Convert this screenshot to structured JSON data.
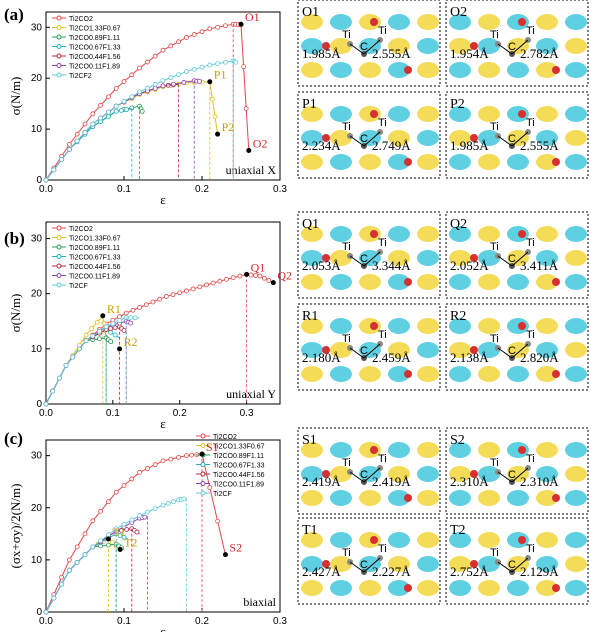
{
  "panels": [
    {
      "tag": "(a)",
      "mode_label": "uniaxial X",
      "xlabel": "ε",
      "ylabel": "σ(N/m)",
      "legend": [
        "Ti2CO2",
        "Ti2CO1.33F0.67",
        "Ti2CO0.89F1.11",
        "Ti2CO0.67F1.33",
        "Ti2CO0.44F1.56",
        "Ti2CO0.11F1.89",
        "Ti2CF2"
      ],
      "points": [
        {
          "label": "O1",
          "x": 0.25,
          "y": 30.6
        },
        {
          "label": "O2",
          "x": 0.26,
          "y": 5.8
        },
        {
          "label": "P1",
          "x": 0.21,
          "y": 19.3
        },
        {
          "label": "P2",
          "x": 0.22,
          "y": 9.0
        }
      ],
      "bonds": [
        {
          "tag": "O1",
          "left": "1.985Å",
          "right": "2.555Å"
        },
        {
          "tag": "O2",
          "left": "1.954Å",
          "right": "2.782Å"
        },
        {
          "tag": "P1",
          "left": "2.234Å",
          "right": "2.749Å"
        },
        {
          "tag": "P2",
          "left": "1.985Å",
          "right": "2.555Å"
        }
      ]
    },
    {
      "tag": "(b)",
      "mode_label": "uniaxial Y",
      "xlabel": "ε",
      "ylabel": "σ(N/m)",
      "legend": [
        "Ti2CO2",
        "Ti2CO1.33F0.67",
        "Ti2CO0.89F1.11",
        "Ti2CO0.67F1.33",
        "Ti2CO0.44F1.56",
        "Ti2CO0.11F1.89",
        "Ti2CF"
      ],
      "points": [
        {
          "label": "Q1",
          "x": 0.3,
          "y": 23.5
        },
        {
          "label": "Q2",
          "x": 0.34,
          "y": 22.0
        },
        {
          "label": "R1",
          "x": 0.085,
          "y": 16.0
        },
        {
          "label": "R2",
          "x": 0.11,
          "y": 10.0
        }
      ],
      "bonds": [
        {
          "tag": "Q1",
          "left": "2.053Å",
          "right": "3.344Å"
        },
        {
          "tag": "Q2",
          "left": "2.052Å",
          "right": "3.411Å"
        },
        {
          "tag": "R1",
          "left": "2.180Å",
          "right": "2.459Å"
        },
        {
          "tag": "R2",
          "left": "2.138Å",
          "right": "2.820Å"
        }
      ]
    },
    {
      "tag": "(c)",
      "mode_label": "biaxial",
      "xlabel": "ε",
      "ylabel": "(σx+σy)/2(N/m)",
      "legend": [
        "Ti2CO2",
        "Ti2CO1.33F0.67",
        "Ti2CO0.89F1.11",
        "Ti2CO0.67F1.33",
        "Ti2CO0.44F1.56",
        "Ti2CO0.11F1.89",
        "Ti2CF"
      ],
      "points": [
        {
          "label": "S1",
          "x": 0.2,
          "y": 30.3
        },
        {
          "label": "S2",
          "x": 0.23,
          "y": 11.0
        },
        {
          "label": "T1",
          "x": 0.08,
          "y": 14.0
        },
        {
          "label": "T2",
          "x": 0.095,
          "y": 12.0
        }
      ],
      "bonds": [
        {
          "tag": "S1",
          "left": "2.419Å",
          "right": "2.419Å"
        },
        {
          "tag": "S2",
          "left": "2.310Å",
          "right": "2.310Å"
        },
        {
          "tag": "T1",
          "left": "2.427Å",
          "right": "2.227Å"
        },
        {
          "tag": "T2",
          "left": "2.752Å",
          "right": "2.129Å"
        }
      ]
    }
  ],
  "atom_label": "Ti",
  "carbon_label": "C",
  "chart_data": [
    {
      "type": "line",
      "title": "",
      "xlabel": "ε",
      "ylabel": "σ(N/m)",
      "xlim": [
        0,
        0.3
      ],
      "ylim": [
        0,
        33
      ],
      "series": [
        {
          "name": "Ti2CO2",
          "color": "#e04848",
          "x": [
            0,
            0.03,
            0.06,
            0.09,
            0.12,
            0.15,
            0.18,
            0.21,
            0.24,
            0.25,
            0.26
          ],
          "y": [
            0,
            7,
            13,
            18,
            22,
            25.5,
            28,
            29.7,
            30.6,
            30.5,
            5.8
          ]
        },
        {
          "name": "Ti2CO1.33F0.67",
          "color": "#e0c020",
          "x": [
            0,
            0.03,
            0.06,
            0.09,
            0.12,
            0.15,
            0.18,
            0.21,
            0.22
          ],
          "y": [
            0,
            6,
            11,
            14.5,
            16.8,
            18.3,
            19.1,
            19.3,
            9.0
          ]
        },
        {
          "name": "Ti2CO0.89F1.11",
          "color": "#2a9c50",
          "x": [
            0,
            0.03,
            0.06,
            0.09,
            0.12,
            0.125
          ],
          "y": [
            0,
            6,
            10.5,
            13.5,
            14.5,
            13
          ]
        },
        {
          "name": "Ti2CO0.67F1.33",
          "color": "#20b0c0",
          "x": [
            0,
            0.03,
            0.06,
            0.09,
            0.11
          ],
          "y": [
            0,
            6,
            10.5,
            13.5,
            14
          ]
        },
        {
          "name": "Ti2CO0.44F1.56",
          "color": "#b02840",
          "x": [
            0,
            0.03,
            0.06,
            0.09,
            0.12,
            0.15,
            0.17
          ],
          "y": [
            0,
            6,
            11,
            14.5,
            17,
            18.5,
            18.8
          ]
        },
        {
          "name": "Ti2CO0.11F1.89",
          "color": "#9040b0",
          "x": [
            0,
            0.03,
            0.06,
            0.09,
            0.12,
            0.15,
            0.19,
            0.2
          ],
          "y": [
            0,
            6,
            11,
            14.5,
            17,
            18.5,
            19.5,
            19.3
          ]
        },
        {
          "name": "Ti2CF2",
          "color": "#60c8d8",
          "x": [
            0,
            0.03,
            0.06,
            0.09,
            0.12,
            0.15,
            0.18,
            0.21,
            0.24,
            0.245
          ],
          "y": [
            0,
            6,
            11,
            14.5,
            17.3,
            19.5,
            21.3,
            22.6,
            23.4,
            23
          ]
        }
      ]
    },
    {
      "type": "line",
      "title": "",
      "xlabel": "ε",
      "ylabel": "σ(N/m)",
      "xlim": [
        0,
        0.35
      ],
      "ylim": [
        0,
        33
      ],
      "series": [
        {
          "name": "Ti2CO2",
          "color": "#e04848",
          "x": [
            0,
            0.03,
            0.06,
            0.09,
            0.12,
            0.15,
            0.18,
            0.21,
            0.24,
            0.27,
            0.3,
            0.32,
            0.34
          ],
          "y": [
            0,
            7,
            11.5,
            14.5,
            16.5,
            18,
            19.5,
            20.5,
            21.6,
            22.6,
            23.5,
            23.2,
            22
          ]
        },
        {
          "name": "Ti2CO1.33F0.67",
          "color": "#e0c020",
          "x": [
            0,
            0.03,
            0.06,
            0.085,
            0.09
          ],
          "y": [
            0,
            7,
            12.5,
            16,
            12
          ]
        },
        {
          "name": "Ti2CO0.89F1.11",
          "color": "#2a9c50",
          "x": [
            0,
            0.03,
            0.06,
            0.09,
            0.1
          ],
          "y": [
            0,
            7,
            11.5,
            12,
            11
          ]
        },
        {
          "name": "Ti2CO0.67F1.33",
          "color": "#20b0c0",
          "x": [
            0,
            0.03,
            0.06,
            0.09,
            0.11
          ],
          "y": [
            0,
            7,
            11.5,
            13.5,
            12
          ]
        },
        {
          "name": "Ti2CO0.44F1.56",
          "color": "#b02840",
          "x": [
            0,
            0.03,
            0.06,
            0.09,
            0.11,
            0.12
          ],
          "y": [
            0,
            7,
            11.5,
            13.5,
            14,
            13
          ]
        },
        {
          "name": "Ti2CO0.11F1.89",
          "color": "#9040b0",
          "x": [
            0,
            0.03,
            0.06,
            0.09,
            0.12,
            0.13
          ],
          "y": [
            0,
            7,
            11.5,
            14,
            15,
            14.5
          ]
        },
        {
          "name": "Ti2CF",
          "color": "#60c8d8",
          "x": [
            0,
            0.03,
            0.06,
            0.09,
            0.12,
            0.14
          ],
          "y": [
            0,
            7,
            11.5,
            14,
            15.7,
            15.6
          ]
        }
      ]
    },
    {
      "type": "line",
      "title": "",
      "xlabel": "ε",
      "ylabel": "(σx+σy)/2(N/m)",
      "xlim": [
        0,
        0.3
      ],
      "ylim": [
        0,
        33
      ],
      "series": [
        {
          "name": "Ti2CO2",
          "color": "#e04848",
          "x": [
            0,
            0.03,
            0.06,
            0.09,
            0.12,
            0.15,
            0.18,
            0.2,
            0.23
          ],
          "y": [
            0,
            10,
            17.5,
            23,
            26.8,
            29,
            30,
            30.3,
            11
          ]
        },
        {
          "name": "Ti2CO1.33F0.67",
          "color": "#e0c020",
          "x": [
            0,
            0.03,
            0.06,
            0.08,
            0.095
          ],
          "y": [
            0,
            8,
            12.5,
            14,
            12
          ]
        },
        {
          "name": "Ti2CO0.89F1.11",
          "color": "#2a9c50",
          "x": [
            0,
            0.03,
            0.06,
            0.09,
            0.1
          ],
          "y": [
            0,
            8,
            12.5,
            13,
            12
          ]
        },
        {
          "name": "Ti2CO0.67F1.33",
          "color": "#20b0c0",
          "x": [
            0,
            0.03,
            0.06,
            0.09,
            0.105
          ],
          "y": [
            0,
            8,
            12.5,
            15,
            14
          ]
        },
        {
          "name": "Ti2CO0.44F1.56",
          "color": "#b02840",
          "x": [
            0,
            0.03,
            0.06,
            0.09,
            0.11,
            0.12
          ],
          "y": [
            0,
            8,
            12.5,
            15.5,
            16,
            15
          ]
        },
        {
          "name": "Ti2CO0.11F1.89",
          "color": "#9040b0",
          "x": [
            0,
            0.03,
            0.06,
            0.09,
            0.12,
            0.13
          ],
          "y": [
            0,
            8,
            12.5,
            15.5,
            18,
            18.3
          ]
        },
        {
          "name": "Ti2CF",
          "color": "#60c8d8",
          "x": [
            0,
            0.03,
            0.06,
            0.09,
            0.12,
            0.15,
            0.17,
            0.18
          ],
          "y": [
            0,
            8,
            12.5,
            16,
            18.5,
            20.5,
            21.5,
            21.8
          ]
        }
      ]
    }
  ]
}
